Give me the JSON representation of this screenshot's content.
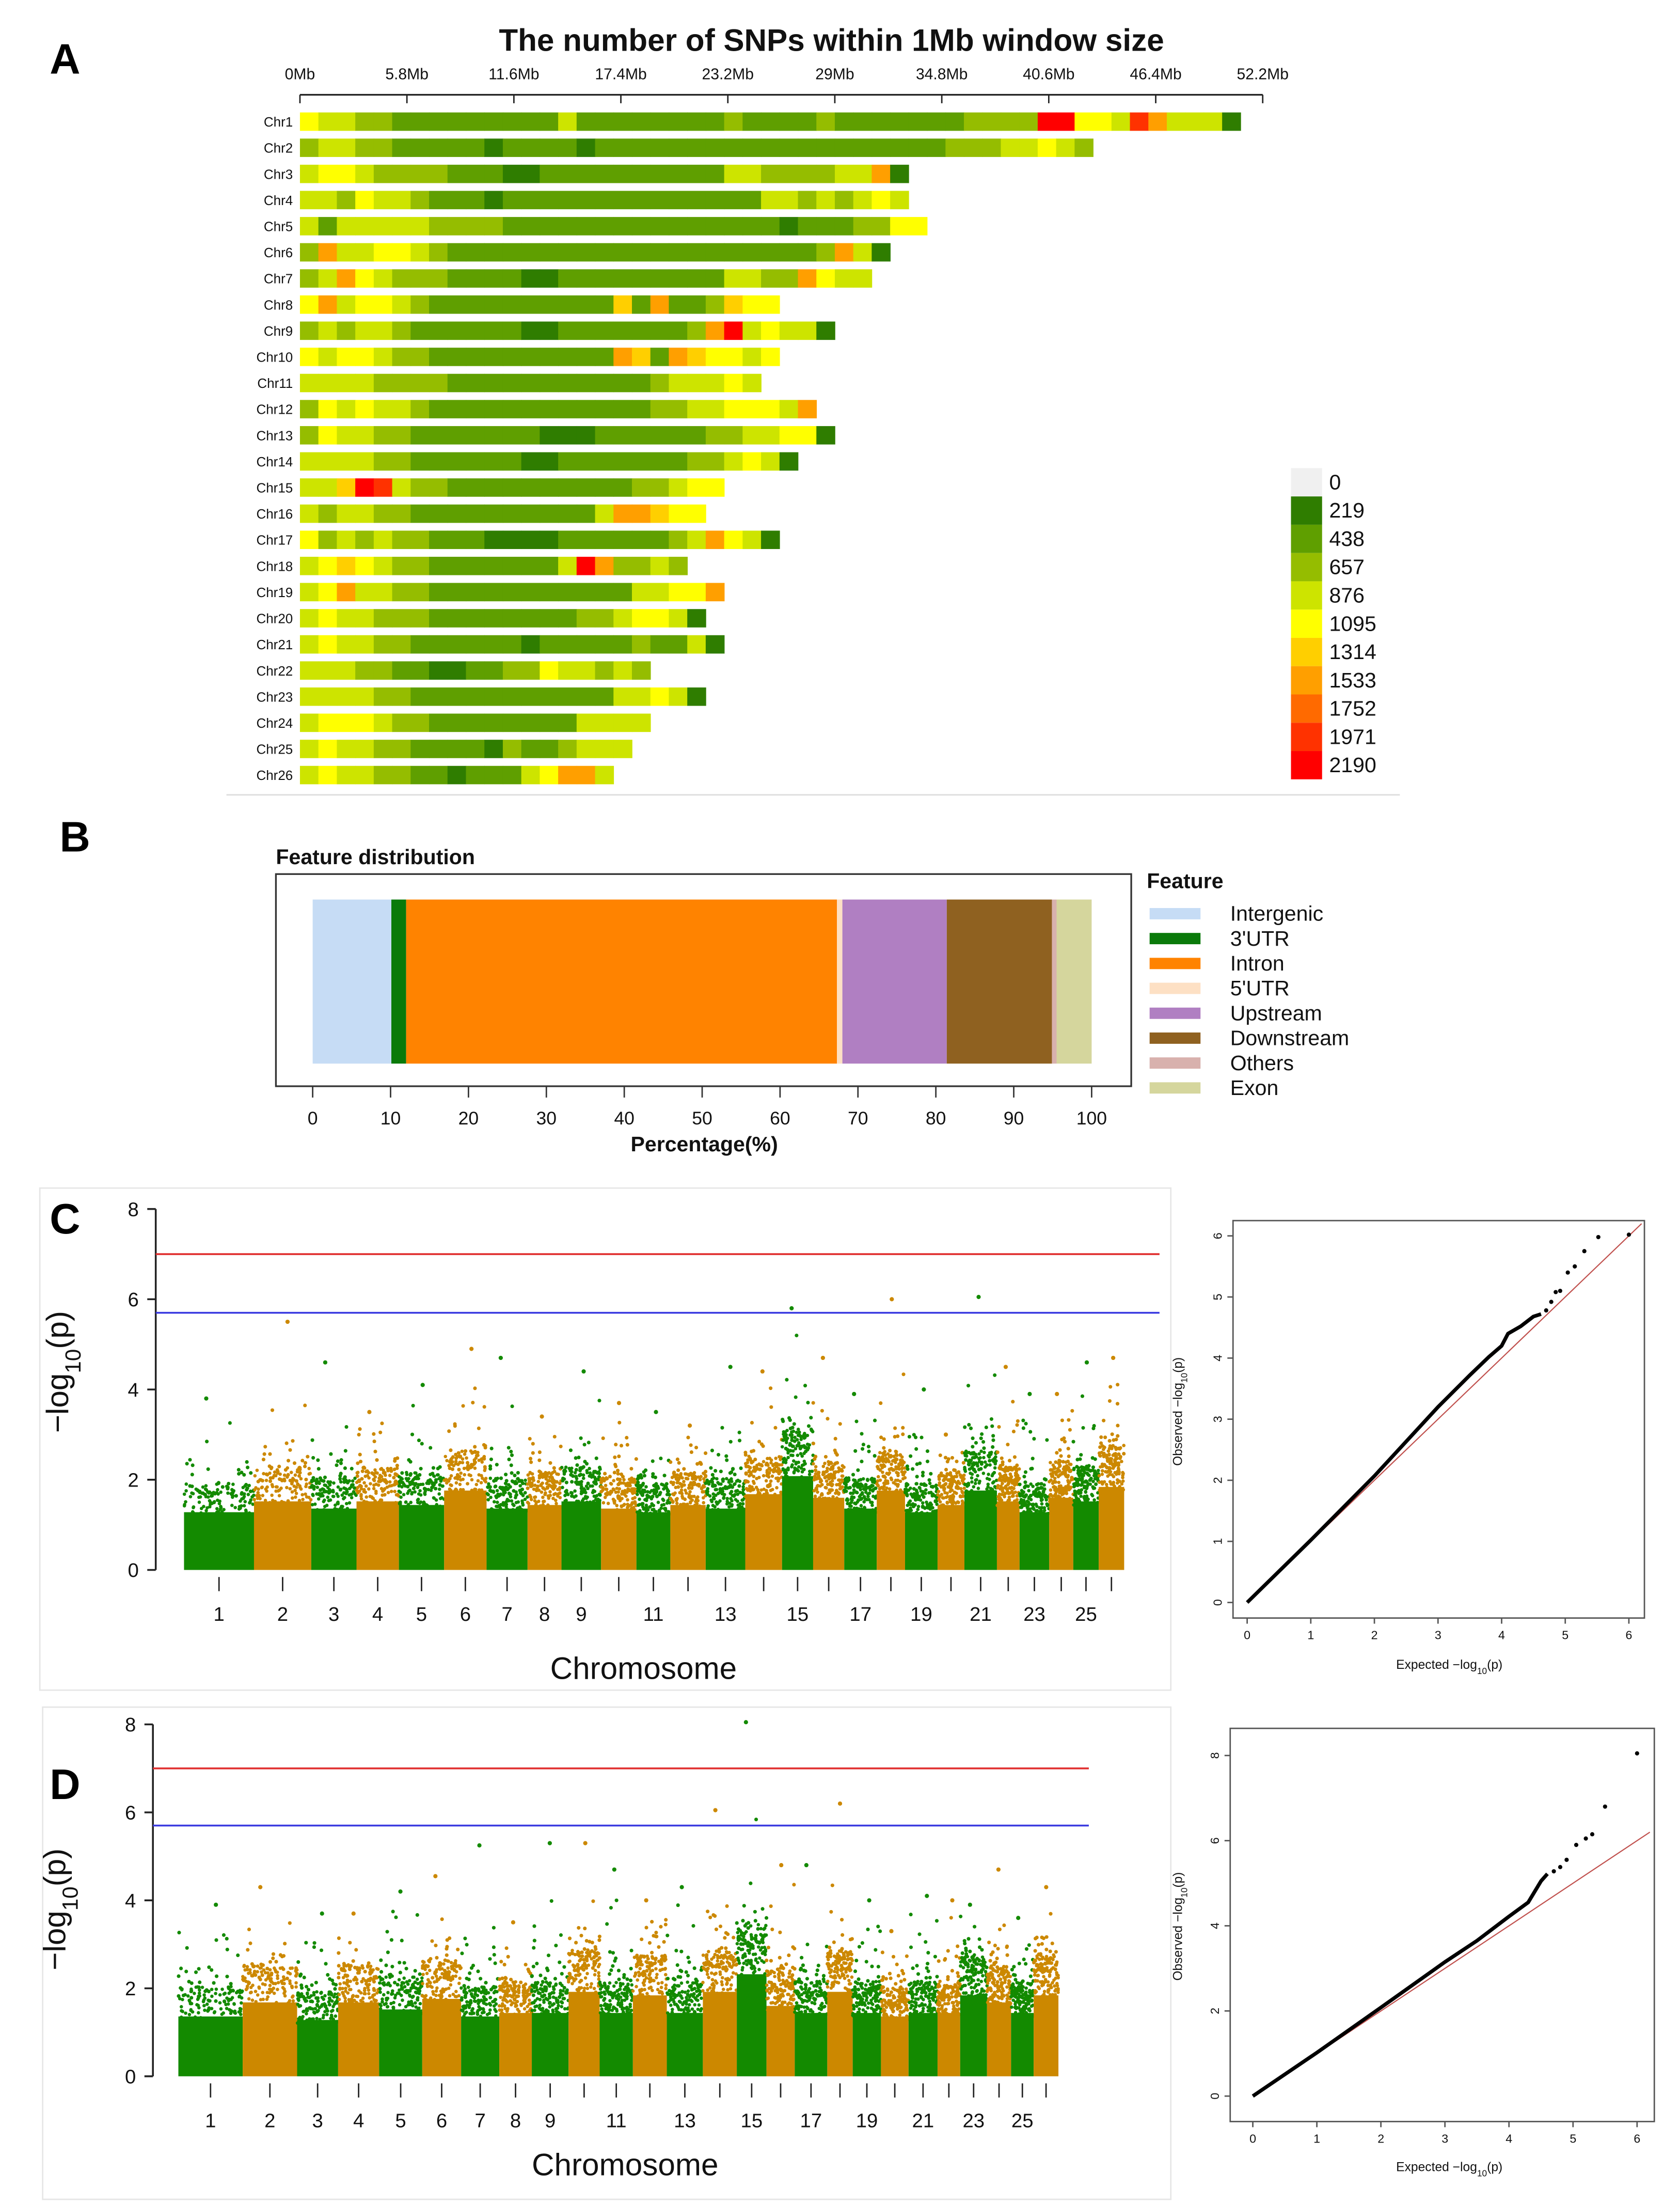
{
  "panels": {
    "a": "A",
    "b": "B",
    "c": "C",
    "d": "D"
  },
  "chart_data": [
    {
      "id": "snp_density",
      "type": "heatmap",
      "title": "The number of SNPs within 1Mb window size",
      "x_ticks": [
        "0Mb",
        "5.8Mb",
        "11.6Mb",
        "17.4Mb",
        "23.2Mb",
        "29Mb",
        "34.8Mb",
        "40.6Mb",
        "46.4Mb",
        "52.2Mb"
      ],
      "x_tick_step_mb": 5.8,
      "bin_size_mb": 1,
      "level_encoding": "one character per 1Mb bin; 0-9 and a=10 index into legend levels",
      "legend": {
        "values": [
          "0",
          "219",
          "438",
          "657",
          "876",
          "1095",
          "1314",
          "1533",
          "1752",
          "1971",
          "2190"
        ],
        "colors": [
          "#f0f0f0",
          "#2f7d00",
          "#5f9f00",
          "#95bd00",
          "#cde400",
          "#ffff00",
          "#ffcf00",
          "#ff9f00",
          "#ff6a00",
          "#ff3200",
          "#ff0000"
        ]
      },
      "chromosomes": [
        {
          "name": "Chr1",
          "levels": "5443322222222242222222232222322222223333aa554974441"
        },
        {
          "name": "Chr2",
          "levels": "3443322222122221222222222222222222233344543"
        },
        {
          "name": "Chr3",
          "levels": "455433332221122222222224433334471"
        },
        {
          "name": "Chr4",
          "levels": "443544322212222222222222244343454"
        },
        {
          "name": "Chr5",
          "levels": "4244444333322222222222222212223355"
        },
        {
          "name": "Chr6",
          "levels": "37445543222222222222222222223741"
        },
        {
          "name": "Chr7",
          "levels": "3475433322221122222222244337544"
        },
        {
          "name": "Chr8",
          "levels": "57455432222222222627223655"
        },
        {
          "name": "Chr9",
          "levels": "34344322222211222222237a45441"
        },
        {
          "name": "Chr10",
          "levels": "54554332222222222762765545"
        },
        {
          "name": "Chr11",
          "levels": "4444333322222222222344454"
        },
        {
          "name": "Chr12",
          "levels": "3545443222222222222334455547"
        },
        {
          "name": "Chr13",
          "levels": "35443322222221112222223344551"
        },
        {
          "name": "Chr14",
          "levels": "444433222222112222222334541"
        },
        {
          "name": "Chr15",
          "levels": "446a9433222222222233455"
        },
        {
          "name": "Chr16",
          "levels": "4344332222222222477655"
        },
        {
          "name": "Chr17",
          "levels": "53434332221111222222347541"
        },
        {
          "name": "Chr18",
          "levels": "456543322222224a73343"
        },
        {
          "name": "Chr19",
          "levels": "45744332222222222244557"
        },
        {
          "name": "Chr20",
          "levels": "4544333222222223345541"
        },
        {
          "name": "Chr21",
          "levels": "45443322222212222232241"
        },
        {
          "name": "Chr22",
          "levels": "4443322112233544343"
        },
        {
          "name": "Chr23",
          "levels": "4444332222222222244541"
        },
        {
          "name": "Chr24",
          "levels": "4555433222222224444"
        },
        {
          "name": "Chr25",
          "levels": "454433222213223444"
        },
        {
          "name": "Chr26",
          "levels": "45443322122245774"
        }
      ]
    },
    {
      "id": "feature_distribution",
      "type": "bar",
      "title": "Feature distribution",
      "xlabel": "Percentage(%)",
      "xlim": [
        0,
        100
      ],
      "x_ticks": [
        "0",
        "10",
        "20",
        "30",
        "40",
        "50",
        "60",
        "70",
        "80",
        "90",
        "100"
      ],
      "legend_title": "Feature",
      "series": [
        {
          "name": "Intergenic",
          "value": 10.1,
          "color": "#c6dcf5"
        },
        {
          "name": "3'UTR",
          "value": 1.9,
          "color": "#0a7a0a"
        },
        {
          "name": "Intron",
          "value": 55.3,
          "color": "#ff8300"
        },
        {
          "name": "5'UTR",
          "value": 0.7,
          "color": "#fde0c4"
        },
        {
          "name": "Upstream",
          "value": 13.4,
          "color": "#b07fc2"
        },
        {
          "name": "Downstream",
          "value": 13.5,
          "color": "#8f6120"
        },
        {
          "name": "Others",
          "value": 0.6,
          "color": "#d8b1ad"
        },
        {
          "name": "Exon",
          "value": 4.5,
          "color": "#d5d69d"
        }
      ]
    },
    {
      "id": "manhattan_c",
      "type": "scatter",
      "xlabel": "Chromosome",
      "ylabel": {
        "main": "−log",
        "sub": "10",
        "rest": "(p)"
      },
      "ylim": [
        0,
        8
      ],
      "y_ticks": [
        "0",
        "2",
        "4",
        "6",
        "8"
      ],
      "x_tick_labels": [
        {
          "chr": 1,
          "label": "1"
        },
        {
          "chr": 2,
          "label": "2"
        },
        {
          "chr": 3,
          "label": "3"
        },
        {
          "chr": 4,
          "label": "4"
        },
        {
          "chr": 5,
          "label": "5"
        },
        {
          "chr": 6,
          "label": "6"
        },
        {
          "chr": 7,
          "label": "7"
        },
        {
          "chr": 8,
          "label": "8"
        },
        {
          "chr": 9,
          "label": "9"
        },
        {
          "chr": 11,
          "label": "11"
        },
        {
          "chr": 13,
          "label": "13"
        },
        {
          "chr": 15,
          "label": "15"
        },
        {
          "chr": 17,
          "label": "17"
        },
        {
          "chr": 19,
          "label": "19"
        },
        {
          "chr": 21,
          "label": "21"
        },
        {
          "chr": 23,
          "label": "23"
        },
        {
          "chr": 25,
          "label": "25"
        }
      ],
      "significance_line": {
        "value": 7.0,
        "color": "#e03030"
      },
      "suggestive_line": {
        "value": 5.7,
        "color": "#3a3ae0"
      },
      "colors": [
        "#138a00",
        "#cc8800"
      ],
      "chromosome_max": [
        3.8,
        5.5,
        4.6,
        3.5,
        4.1,
        4.9,
        4.7,
        3.4,
        4.4,
        3.7,
        3.5,
        3.2,
        4.5,
        4.4,
        5.8,
        4.7,
        3.9,
        6.0,
        4.0,
        3.0,
        6.05,
        4.5,
        3.9,
        3.9,
        4.6,
        4.7
      ],
      "chromosome_dense_top": [
        1.6,
        1.9,
        1.7,
        1.9,
        1.8,
        2.2,
        1.7,
        1.8,
        1.9,
        1.7,
        1.6,
        1.8,
        1.7,
        2.1,
        2.6,
        2.0,
        1.7,
        2.2,
        1.6,
        1.8,
        2.2,
        1.9,
        1.6,
        2.0,
        1.9,
        2.3
      ]
    },
    {
      "id": "qq_c",
      "type": "scatter",
      "xlabel": {
        "main": "Expected  −log",
        "sub": "10",
        "rest": "(p)"
      },
      "ylabel": {
        "main": "Observed  −log",
        "sub": "10",
        "rest": "(p)"
      },
      "xlim": [
        0,
        6
      ],
      "ylim": [
        0,
        6
      ],
      "x_ticks": [
        "0",
        "1",
        "2",
        "3",
        "4",
        "5",
        "6"
      ],
      "y_ticks": [
        "0",
        "1",
        "2",
        "3",
        "4",
        "5",
        "6"
      ],
      "body": [
        [
          0,
          0
        ],
        [
          1,
          1.02
        ],
        [
          2,
          2.07
        ],
        [
          3,
          3.2
        ],
        [
          3.5,
          3.72
        ],
        [
          3.8,
          4.02
        ],
        [
          4.0,
          4.2
        ],
        [
          4.1,
          4.4
        ],
        [
          4.3,
          4.52
        ],
        [
          4.5,
          4.68
        ],
        [
          4.62,
          4.72
        ]
      ],
      "tail_points": [
        [
          4.7,
          4.78
        ],
        [
          4.78,
          4.92
        ],
        [
          4.85,
          5.08
        ],
        [
          4.92,
          5.1
        ],
        [
          5.04,
          5.4
        ],
        [
          5.15,
          5.5
        ],
        [
          5.3,
          5.75
        ],
        [
          5.52,
          5.98
        ],
        [
          6.0,
          6.02
        ]
      ],
      "diagonal_end": 6.2
    },
    {
      "id": "manhattan_d",
      "type": "scatter",
      "xlabel": "Chromosome",
      "ylabel": {
        "main": "−log",
        "sub": "10",
        "rest": "(p)"
      },
      "ylim": [
        0,
        8
      ],
      "y_ticks": [
        "0",
        "2",
        "4",
        "6",
        "8"
      ],
      "x_tick_labels": [
        {
          "chr": 1,
          "label": "1"
        },
        {
          "chr": 2,
          "label": "2"
        },
        {
          "chr": 3,
          "label": "3"
        },
        {
          "chr": 4,
          "label": "4"
        },
        {
          "chr": 5,
          "label": "5"
        },
        {
          "chr": 6,
          "label": "6"
        },
        {
          "chr": 7,
          "label": "7"
        },
        {
          "chr": 8,
          "label": "8"
        },
        {
          "chr": 9,
          "label": "9"
        },
        {
          "chr": 11,
          "label": "11"
        },
        {
          "chr": 13,
          "label": "13"
        },
        {
          "chr": 15,
          "label": "15"
        },
        {
          "chr": 17,
          "label": "17"
        },
        {
          "chr": 19,
          "label": "19"
        },
        {
          "chr": 21,
          "label": "21"
        },
        {
          "chr": 23,
          "label": "23"
        },
        {
          "chr": 25,
          "label": "25"
        }
      ],
      "significance_line": {
        "value": 7.0,
        "color": "#e03030"
      },
      "suggestive_line": {
        "value": 5.7,
        "color": "#3a3ae0"
      },
      "colors": [
        "#138a00",
        "#cc8800"
      ],
      "chromosome_max": [
        3.9,
        4.3,
        3.7,
        3.7,
        4.2,
        4.55,
        5.25,
        3.5,
        5.3,
        5.3,
        4.7,
        4.0,
        4.3,
        6.05,
        8.05,
        4.8,
        4.8,
        6.2,
        4.0,
        3.3,
        4.1,
        4.0,
        3.9,
        4.7,
        3.6,
        4.3
      ],
      "chromosome_dense_top": [
        1.7,
        2.1,
        1.6,
        2.1,
        1.9,
        2.2,
        1.7,
        1.8,
        1.8,
        2.4,
        1.8,
        2.3,
        1.8,
        2.4,
        2.9,
        2.0,
        1.8,
        2.4,
        1.8,
        1.7,
        1.8,
        1.8,
        2.3,
        2.1,
        1.8,
        2.3
      ]
    },
    {
      "id": "qq_d",
      "type": "scatter",
      "xlabel": {
        "main": "Expected  −log",
        "sub": "10",
        "rest": "(p)"
      },
      "ylabel": {
        "main": "Observed  −log",
        "sub": "10",
        "rest": "(p)"
      },
      "xlim": [
        0,
        6
      ],
      "ylim": [
        0,
        8
      ],
      "x_ticks": [
        "0",
        "1",
        "2",
        "3",
        "4",
        "5",
        "6"
      ],
      "y_ticks": [
        "0",
        "2",
        "4",
        "6",
        "8"
      ],
      "body": [
        [
          0,
          0
        ],
        [
          1,
          1.02
        ],
        [
          2,
          2.08
        ],
        [
          3,
          3.15
        ],
        [
          3.5,
          3.65
        ],
        [
          4.0,
          4.22
        ],
        [
          4.3,
          4.55
        ],
        [
          4.5,
          5.05
        ],
        [
          4.6,
          5.22
        ]
      ],
      "tail_points": [
        [
          4.7,
          5.28
        ],
        [
          4.8,
          5.38
        ],
        [
          4.9,
          5.55
        ],
        [
          5.05,
          5.9
        ],
        [
          5.2,
          6.05
        ],
        [
          5.3,
          6.15
        ],
        [
          5.5,
          6.8
        ],
        [
          6.0,
          8.05
        ]
      ],
      "diagonal_end": 6.2
    }
  ]
}
